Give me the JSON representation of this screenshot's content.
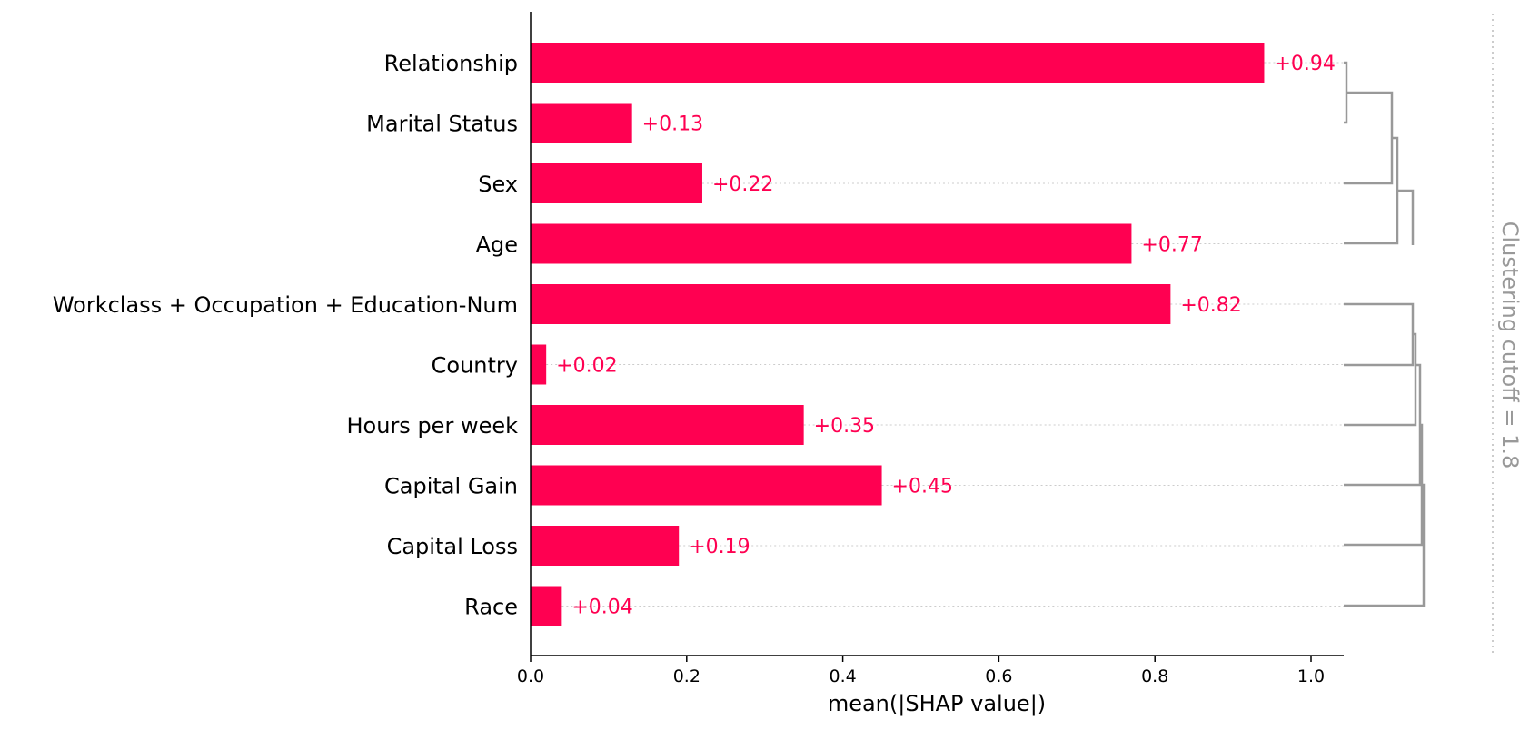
{
  "chart_data": {
    "type": "bar",
    "orientation": "horizontal",
    "categories": [
      "Relationship",
      "Marital Status",
      "Sex",
      "Age",
      "Workclass + Occupation + Education-Num",
      "Country",
      "Hours per week",
      "Capital Gain",
      "Capital Loss",
      "Race"
    ],
    "values": [
      0.94,
      0.13,
      0.22,
      0.77,
      0.82,
      0.02,
      0.35,
      0.45,
      0.19,
      0.04
    ],
    "value_labels": [
      "+0.94",
      "+0.13",
      "+0.22",
      "+0.77",
      "+0.82",
      "+0.02",
      "+0.35",
      "+0.45",
      "+0.19",
      "+0.04"
    ],
    "xlabel": "mean(|SHAP value|)",
    "xlim": [
      0,
      1.04
    ],
    "xticks": [
      "0.0",
      "0.2",
      "0.4",
      "0.6",
      "0.8",
      "1.0"
    ],
    "xtick_values": [
      0,
      0.2,
      0.4,
      0.6,
      0.8,
      1.0
    ],
    "clustering_cutoff_label": "Clustering cutoff = 1.8",
    "grid": false,
    "colors": {
      "bar": "#ff0051",
      "label": "#ff0051",
      "dendrogram": "#999999",
      "guide": "#cccccc",
      "cutoff_text": "#999999"
    }
  }
}
